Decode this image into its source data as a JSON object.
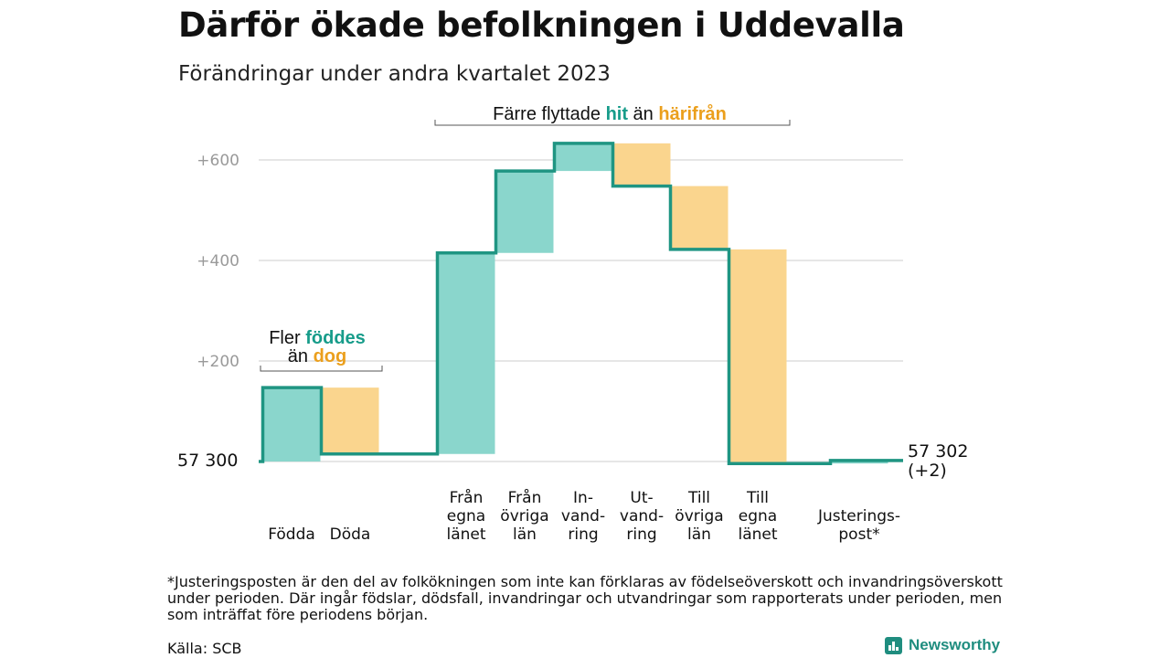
{
  "title": "Därför ökade befolkningen i Uddevalla",
  "subtitle": "Förändringar under andra kvartalet 2023",
  "colors": {
    "increase": "#8ad6cc",
    "decrease": "#fad58e",
    "line": "#1f9582",
    "grid": "#dedede",
    "accent_teal": "#179c8a",
    "accent_orange": "#eb9f1c"
  },
  "chart_data": {
    "type": "waterfall",
    "baseline_value": 57300,
    "baseline_label": "57  300",
    "end_label_line1": "57 302",
    "end_label_line2": "(+2)",
    "y_ticks": [
      "+200",
      "+400",
      "+600"
    ],
    "ylim": [
      0,
      660
    ],
    "grid": true,
    "steps": [
      {
        "label_lines": [
          "Födda"
        ],
        "change": 147,
        "cumulative": 147
      },
      {
        "label_lines": [
          "Döda"
        ],
        "change": -132,
        "cumulative": 15
      },
      {
        "label_lines": [
          "Från",
          "egna",
          "länet"
        ],
        "change": 400,
        "cumulative": 415
      },
      {
        "label_lines": [
          "Från",
          "övriga",
          "län"
        ],
        "change": 163,
        "cumulative": 578
      },
      {
        "label_lines": [
          "In-",
          "vand-",
          "ring"
        ],
        "change": 55,
        "cumulative": 633
      },
      {
        "label_lines": [
          "Ut-",
          "vand-",
          "ring"
        ],
        "change": -85,
        "cumulative": 548
      },
      {
        "label_lines": [
          "Till",
          "övriga",
          "län"
        ],
        "change": -126,
        "cumulative": 422
      },
      {
        "label_lines": [
          "Till",
          "egna",
          "länet"
        ],
        "change": -426,
        "cumulative": -4
      },
      {
        "label_lines": [
          "Justerings-",
          "post*"
        ],
        "change": 6,
        "cumulative": 2
      }
    ],
    "annotations": {
      "births": {
        "line1_prefix": "Fler ",
        "line1_highlight": "föddes",
        "line2_prefix": "än ",
        "line2_highlight": "dog"
      },
      "migration": {
        "prefix": "Färre flyttade ",
        "highlight1": "hit",
        "middle": " än ",
        "highlight2": "härifrån"
      }
    }
  },
  "footnote": "*Justeringsposten är den del av folkökningen som inte kan förklaras av födelseöverskott och invandringsöverskott under perioden. Där ingår födslar, dödsfall, invandringar och utvandringar som rapporterats under perioden, men som inträffat före periodens början.",
  "source": "Källa: SCB",
  "brand": "Newsworthy"
}
